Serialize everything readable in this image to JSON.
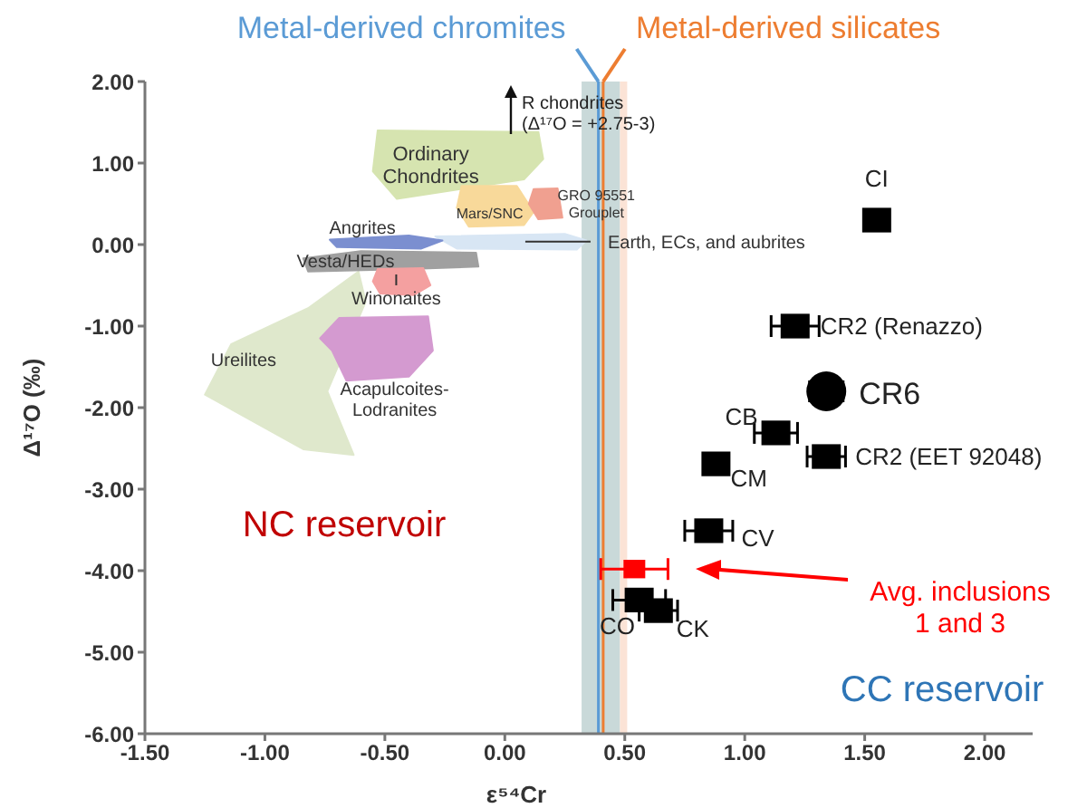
{
  "chart_data": {
    "type": "scatter",
    "xlabel": "ε⁵⁴Cr",
    "ylabel": "Δ¹⁷O (‰)",
    "xlim": [
      -1.5,
      2.2
    ],
    "ylim": [
      -6,
      2
    ],
    "xticks": [
      {
        "value": -1.5,
        "label": "-1.50"
      },
      {
        "value": -1,
        "label": "-1.00"
      },
      {
        "value": -0.5,
        "label": "-0.50"
      },
      {
        "value": 0,
        "label": "0.00"
      },
      {
        "value": 0.5,
        "label": "0.50"
      },
      {
        "value": 1,
        "label": "1.00"
      },
      {
        "value": 1.5,
        "label": "1.50"
      },
      {
        "value": 2,
        "label": "2.00"
      }
    ],
    "yticks": [
      {
        "value": -6,
        "label": "-6.00"
      },
      {
        "value": -5,
        "label": "-5.00"
      },
      {
        "value": -4,
        "label": "-4.00"
      },
      {
        "value": -3,
        "label": "-3.00"
      },
      {
        "value": -2,
        "label": "-2.00"
      },
      {
        "value": -1,
        "label": "-1.00"
      },
      {
        "value": 0,
        "label": "0.00"
      },
      {
        "value": 1,
        "label": "1.00"
      },
      {
        "value": 2,
        "label": "2.00"
      }
    ],
    "marker": "square",
    "series": [
      {
        "type": "area",
        "name": "Ureilites",
        "marker": "none",
        "color": "#dfe8cc",
        "x": [
          -0.61,
          -0.82,
          -1.14,
          -1.25,
          -0.84,
          -0.63,
          -0.74,
          -0.58
        ],
        "values": [
          -0.33,
          -0.78,
          -1.22,
          -1.84,
          -2.51,
          -2.58,
          -1.8,
          -0.7
        ]
      },
      {
        "type": "area",
        "name": "Ordinary\nChondrites",
        "marker": "none",
        "color": "#d6e4b0",
        "x": [
          -0.53,
          0.14,
          0.16,
          0.08,
          -0.45,
          -0.55
        ],
        "values": [
          1.4,
          1.38,
          1.05,
          0.8,
          0.56,
          0.9
        ]
      },
      {
        "type": "area",
        "name": "Mars/SNC",
        "marker": "none",
        "color": "#f8d99a",
        "x": [
          -0.18,
          0.05,
          0.12,
          0.08,
          -0.15,
          -0.2
        ],
        "values": [
          0.72,
          0.72,
          0.4,
          0.24,
          0.22,
          0.45
        ]
      },
      {
        "type": "area",
        "name": "GRO 95551\nGrouplet",
        "marker": "none",
        "color": "#f0a090",
        "x": [
          0.12,
          0.22,
          0.24,
          0.14,
          0.1
        ],
        "values": [
          0.68,
          0.69,
          0.33,
          0.31,
          0.5
        ]
      },
      {
        "type": "area",
        "name": "Earth, ECs, and aubrites",
        "marker": "none",
        "color": "#d8e6f4",
        "x": [
          -0.29,
          0.25,
          0.34,
          0.3,
          -0.2
        ],
        "values": [
          0.1,
          0.13,
          0.05,
          -0.06,
          -0.05
        ]
      },
      {
        "type": "area",
        "name": "Angrites",
        "marker": "none",
        "color": "#7b8fd0",
        "x": [
          -0.73,
          -0.4,
          -0.26,
          -0.35,
          -0.7
        ],
        "values": [
          0.06,
          0.11,
          0.05,
          -0.05,
          -0.03
        ]
      },
      {
        "type": "area",
        "name": "Vesta/HEDs",
        "marker": "none",
        "color": "#a0a0a0",
        "x": [
          -0.84,
          -0.6,
          -0.12,
          -0.11,
          -0.4,
          -0.82
        ],
        "values": [
          -0.17,
          -0.08,
          -0.1,
          -0.27,
          -0.3,
          -0.33
        ]
      },
      {
        "type": "area",
        "name": "Winonaites",
        "marker": "none",
        "color": "#f4a0a0",
        "x": [
          -0.53,
          -0.34,
          -0.31,
          -0.38,
          -0.52,
          -0.55
        ],
        "values": [
          -0.3,
          -0.29,
          -0.5,
          -0.62,
          -0.6,
          -0.45
        ]
      },
      {
        "type": "area",
        "name": "Acapulcoites-\nLodranites",
        "marker": "none",
        "color": "#d49ad0",
        "x": [
          -0.69,
          -0.32,
          -0.3,
          -0.4,
          -0.66,
          -0.72,
          -0.77
        ],
        "values": [
          -0.9,
          -0.88,
          -1.3,
          -1.62,
          -1.67,
          -1.3,
          -1.15
        ]
      },
      {
        "color": "#000000",
        "x": [
          1.55,
          1.21,
          1.13,
          1.34,
          0.88,
          0.85,
          0.56,
          0.64
        ],
        "values": [
          0.3,
          -1.0,
          -2.31,
          -2.6,
          -2.69,
          -3.51,
          -4.36,
          -4.49
        ],
        "xerrors": [
          0.05,
          0.1,
          0.09,
          0.08,
          0.05,
          0.1,
          0.11,
          0.08
        ]
      },
      {
        "color": "#000000",
        "marker": "circle",
        "x": [
          1.34
        ],
        "values": [
          -1.8
        ],
        "xerrors": [
          0.07
        ]
      },
      {
        "color": "#ff0000",
        "x": [
          0.54
        ],
        "values": [
          -3.98
        ],
        "xerrors": [
          0.14
        ]
      }
    ],
    "bands": [
      {
        "axis": "x",
        "from": 0.32,
        "to": 0.48,
        "color": "#c3d5d5"
      },
      {
        "axis": "x",
        "from": 0.48,
        "to": 0.51,
        "color": "#fbe0d2"
      }
    ],
    "ref_lines": [
      {
        "axis": "x",
        "value": 0.39,
        "label": "Metal-derived chromites",
        "color": "#5b9bd5"
      },
      {
        "axis": "x",
        "value": 0.41,
        "label": "Metal-derived silicates",
        "color": "#ed7d31"
      }
    ],
    "annotations": [
      {
        "text": "CI",
        "x": 1.55,
        "y": 0.3
      },
      {
        "text": "CR2 (Renazzo)",
        "x": 1.21,
        "y": -1.0
      },
      {
        "text": "CR6",
        "x": 1.34,
        "y": -1.8
      },
      {
        "text": "CB",
        "x": 1.13,
        "y": -2.31
      },
      {
        "text": "CR2 (EET 92048)",
        "x": 1.34,
        "y": -2.6
      },
      {
        "text": "CM",
        "x": 0.88,
        "y": -2.69
      },
      {
        "text": "CV",
        "x": 0.85,
        "y": -3.51
      },
      {
        "text": "CO",
        "x": 0.56,
        "y": -4.36
      },
      {
        "text": "CK",
        "x": 0.64,
        "y": -4.49
      },
      "Avg. inclusions\n1 and 3",
      "R chondrites\n(Δ¹⁷O = +2.75-3)",
      "NC reservoir",
      "CC reservoir"
    ]
  }
}
